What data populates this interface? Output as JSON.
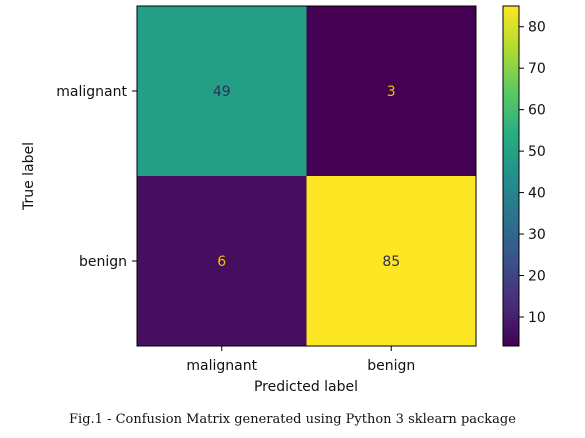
{
  "caption": "Fig.1 - Confusion Matrix generated using Python 3 sklearn package",
  "chart_data": {
    "type": "heatmap",
    "xlabel": "Predicted label",
    "ylabel": "True label",
    "x_categories": [
      "malignant",
      "benign"
    ],
    "y_categories": [
      "malignant",
      "benign"
    ],
    "matrix": [
      [
        49,
        3
      ],
      [
        6,
        85
      ]
    ],
    "colormap": "viridis",
    "colorbar": {
      "range": [
        3,
        85
      ],
      "ticks": [
        10,
        20,
        30,
        40,
        50,
        60,
        70,
        80
      ]
    },
    "colors": {
      "dark_text": "#2a2f5a",
      "light_text": "#f2c400"
    }
  }
}
